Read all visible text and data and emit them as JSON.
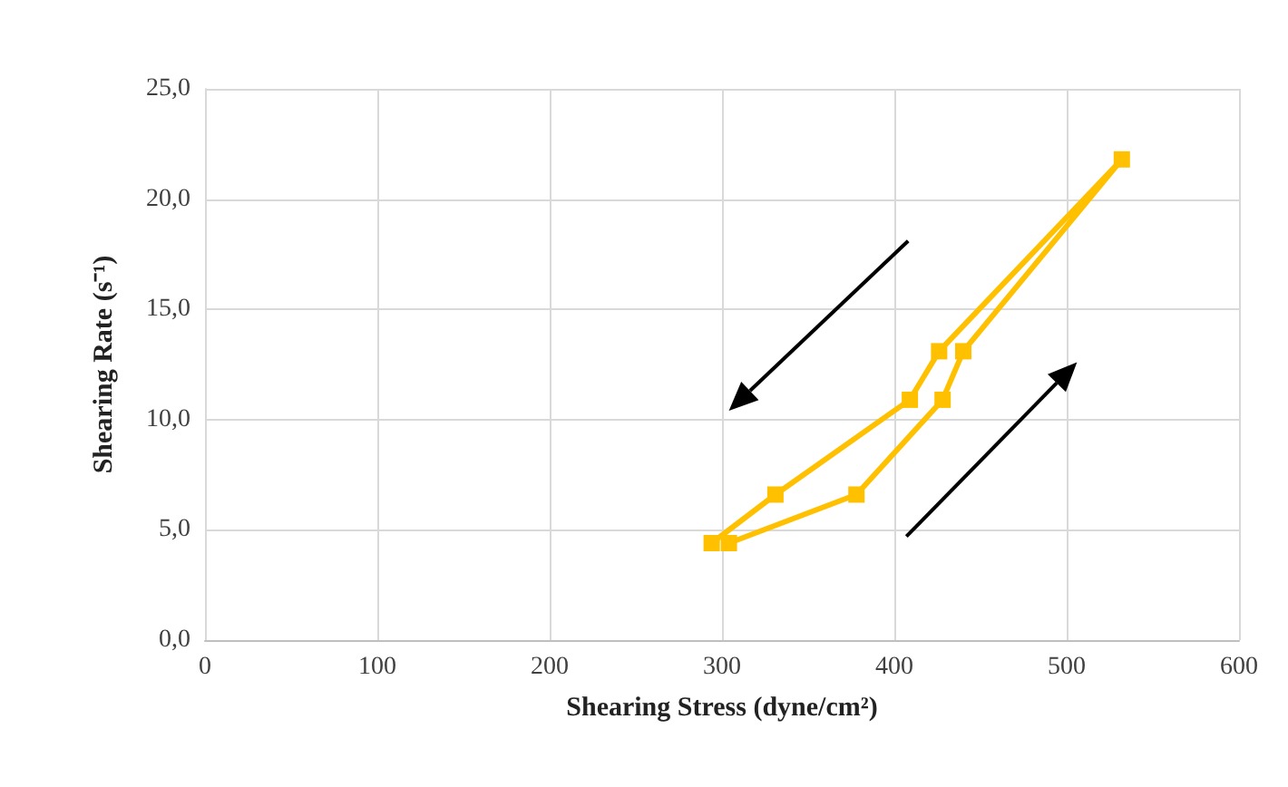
{
  "chart_data": {
    "type": "line",
    "xlabel": "Shearing Stress (dyne/cm²)",
    "ylabel": "Shearing Rate (s⁻¹)",
    "series": [
      {
        "color": "#ffc000",
        "x": [
          304,
          378,
          428,
          440,
          532,
          426,
          409,
          331,
          294
        ],
        "values": [
          4.4,
          6.6,
          10.9,
          13.1,
          21.8,
          13.1,
          10.9,
          6.6,
          4.4
        ]
      }
    ],
    "xlim": [
      0,
      600
    ],
    "xticks": [
      0,
      100,
      200,
      300,
      400,
      500,
      600
    ],
    "ylim": [
      0,
      25
    ],
    "yticks": [
      {
        "value": 0,
        "label": "0,0"
      },
      {
        "value": 5,
        "label": "5,0"
      },
      {
        "value": 10,
        "label": "10,0"
      },
      {
        "value": 15,
        "label": "15,0"
      },
      {
        "value": 20,
        "label": "20,0"
      },
      {
        "value": 25,
        "label": "25,0"
      }
    ],
    "grid": true,
    "marker": "square",
    "line_style": "solid"
  }
}
